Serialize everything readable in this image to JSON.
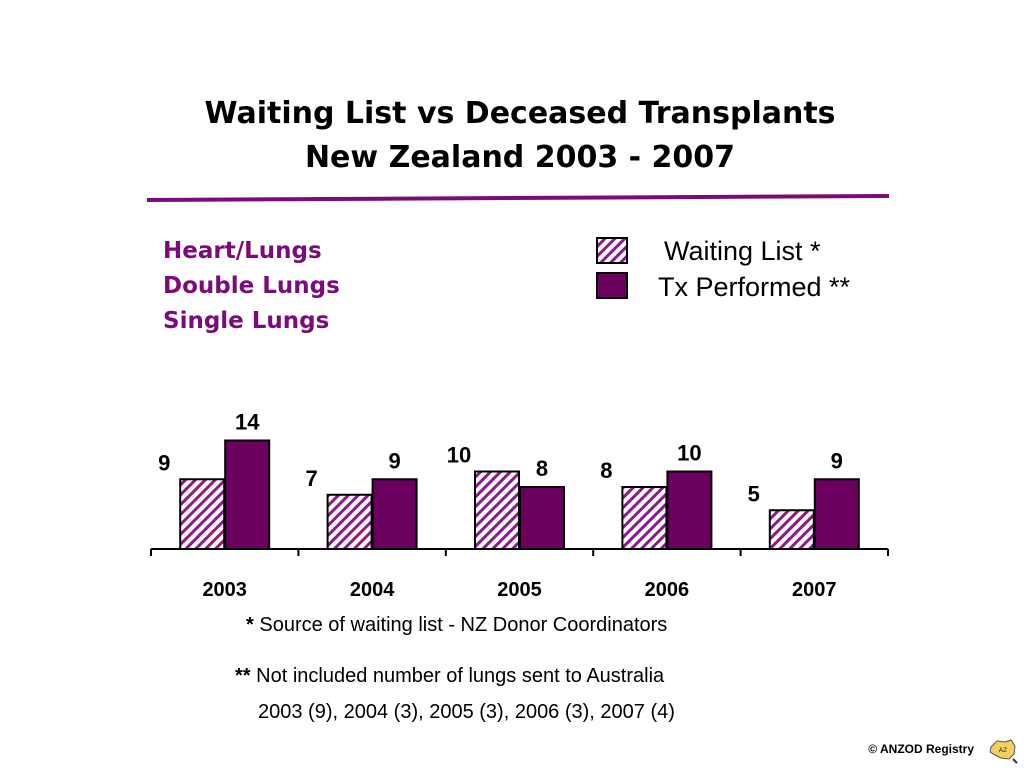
{
  "title": {
    "line1": "Waiting List vs Deceased Transplants",
    "line2": "New Zealand   2003 - 2007"
  },
  "categories_label": [
    "Heart/Lungs",
    "Double Lungs",
    "Single Lungs"
  ],
  "legend": {
    "waiting": "Waiting List *",
    "performed": "Tx Performed **"
  },
  "colors": {
    "accent": "#7b0a7b",
    "bar_fill": "#6b005f",
    "hatch": "#8b1a8b",
    "rule": "#7b0a7b"
  },
  "chart_data": {
    "type": "bar",
    "categories": [
      "2003",
      "2004",
      "2005",
      "2006",
      "2007"
    ],
    "series": [
      {
        "name": "Waiting List *",
        "values": [
          9,
          7,
          10,
          8,
          5
        ],
        "style": "hatched"
      },
      {
        "name": "Tx Performed **",
        "values": [
          14,
          9,
          8,
          10,
          9
        ],
        "style": "solid"
      }
    ],
    "ylim": [
      0,
      14
    ],
    "grid": false,
    "legend_position": "top-right"
  },
  "footnotes": {
    "note1_mark": "*",
    "note1_text": " Source of waiting list - NZ Donor Coordinators",
    "note2_mark": "**",
    "note2_text": " Not included number of lungs sent to Australia",
    "note2_detail": "2003 (9), 2004 (3), 2005 (3), 2006 (3), 2007 (4)"
  },
  "copyright": "© ANZOD Registry"
}
